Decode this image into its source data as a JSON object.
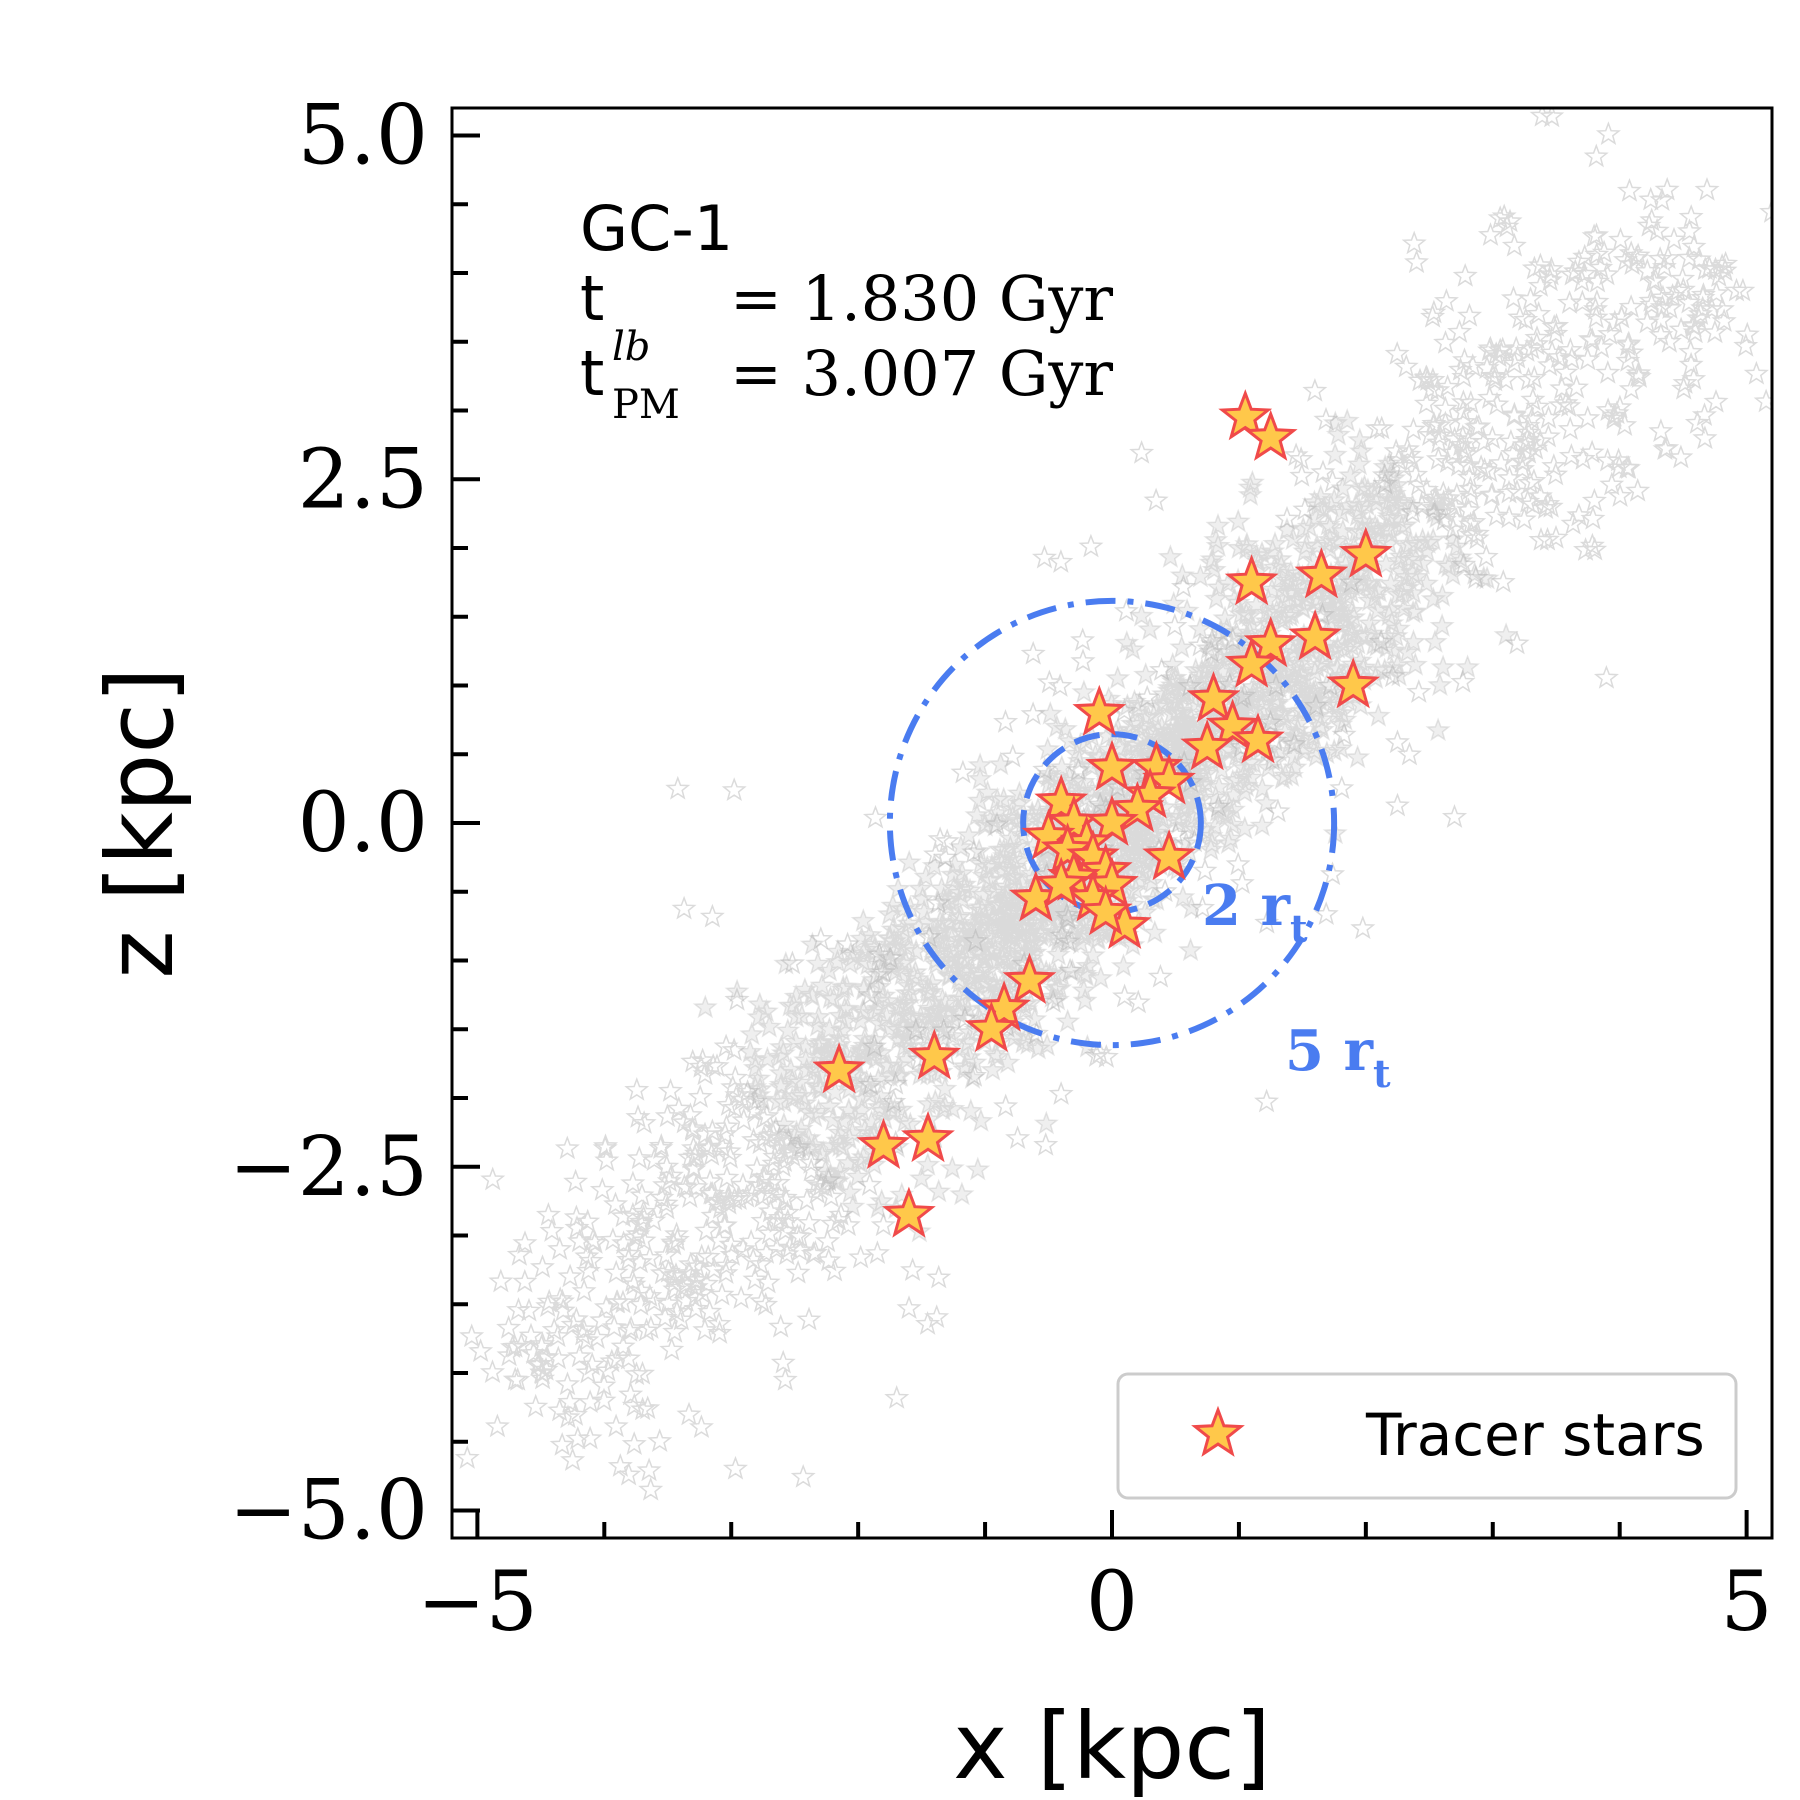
{
  "chart_data": {
    "type": "scatter",
    "title": "",
    "xlabel": "x [kpc]",
    "ylabel": "z [kpc]",
    "xlim": [
      -5.2,
      5.2
    ],
    "ylim": [
      -5.2,
      5.2
    ],
    "x_ticks": [
      -5,
      0,
      5
    ],
    "x_tick_labels": [
      "−5",
      "0",
      "5"
    ],
    "y_ticks": [
      -5.0,
      -2.5,
      0.0,
      2.5,
      5.0
    ],
    "y_tick_labels": [
      "−5.0",
      "−2.5",
      "0.0",
      "2.5",
      "5.0"
    ],
    "annotations": {
      "name": "GC-1",
      "t_label": "t",
      "t_value": "= 1.830 Gyr",
      "tpm_label": "t",
      "tpm_sup": "lb",
      "tpm_sub": "PM",
      "tpm_value": "= 3.007 Gyr"
    },
    "circles": [
      {
        "name": "2 r_t",
        "label_main": "2 r",
        "label_sub": "t",
        "radius": 0.7,
        "style": "dashed",
        "color": "#4a7cf0"
      },
      {
        "name": "5 r_t",
        "label_main": "5 r",
        "label_sub": "t",
        "radius": 1.75,
        "style": "dashdot",
        "color": "#4a7cf0"
      }
    ],
    "background": {
      "name": "stream particles",
      "color": "#9a9a9a",
      "description_slope": 0.95
    },
    "series": [
      {
        "name": "Tracer stars",
        "color": "#ffc84a",
        "edge_color": "#f04a4a",
        "points": [
          [
            1.05,
            2.95
          ],
          [
            1.25,
            2.8
          ],
          [
            2.0,
            1.95
          ],
          [
            1.65,
            1.8
          ],
          [
            1.1,
            1.75
          ],
          [
            1.6,
            1.35
          ],
          [
            1.25,
            1.3
          ],
          [
            1.1,
            1.15
          ],
          [
            1.9,
            1.0
          ],
          [
            0.8,
            0.9
          ],
          [
            0.95,
            0.7
          ],
          [
            1.15,
            0.6
          ],
          [
            0.75,
            0.55
          ],
          [
            -0.1,
            0.8
          ],
          [
            0.0,
            0.4
          ],
          [
            0.35,
            0.4
          ],
          [
            0.45,
            0.3
          ],
          [
            0.3,
            0.2
          ],
          [
            0.2,
            0.1
          ],
          [
            -0.4,
            0.15
          ],
          [
            -0.3,
            0.0
          ],
          [
            0.0,
            0.0
          ],
          [
            -0.5,
            -0.1
          ],
          [
            -0.2,
            -0.15
          ],
          [
            -0.35,
            -0.2
          ],
          [
            -0.15,
            -0.25
          ],
          [
            0.45,
            -0.25
          ],
          [
            -0.05,
            -0.35
          ],
          [
            -0.3,
            -0.4
          ],
          [
            0.0,
            -0.45
          ],
          [
            -0.15,
            -0.55
          ],
          [
            -0.6,
            -0.55
          ],
          [
            -0.4,
            -0.45
          ],
          [
            0.1,
            -0.75
          ],
          [
            -0.05,
            -0.65
          ],
          [
            -0.65,
            -1.15
          ],
          [
            -0.85,
            -1.35
          ],
          [
            -0.95,
            -1.5
          ],
          [
            -1.4,
            -1.7
          ],
          [
            -2.15,
            -1.8
          ],
          [
            -1.45,
            -2.3
          ],
          [
            -1.8,
            -2.35
          ],
          [
            -1.6,
            -2.85
          ]
        ]
      }
    ],
    "legend": {
      "position": "lower right",
      "entries": [
        "Tracer stars"
      ]
    }
  }
}
